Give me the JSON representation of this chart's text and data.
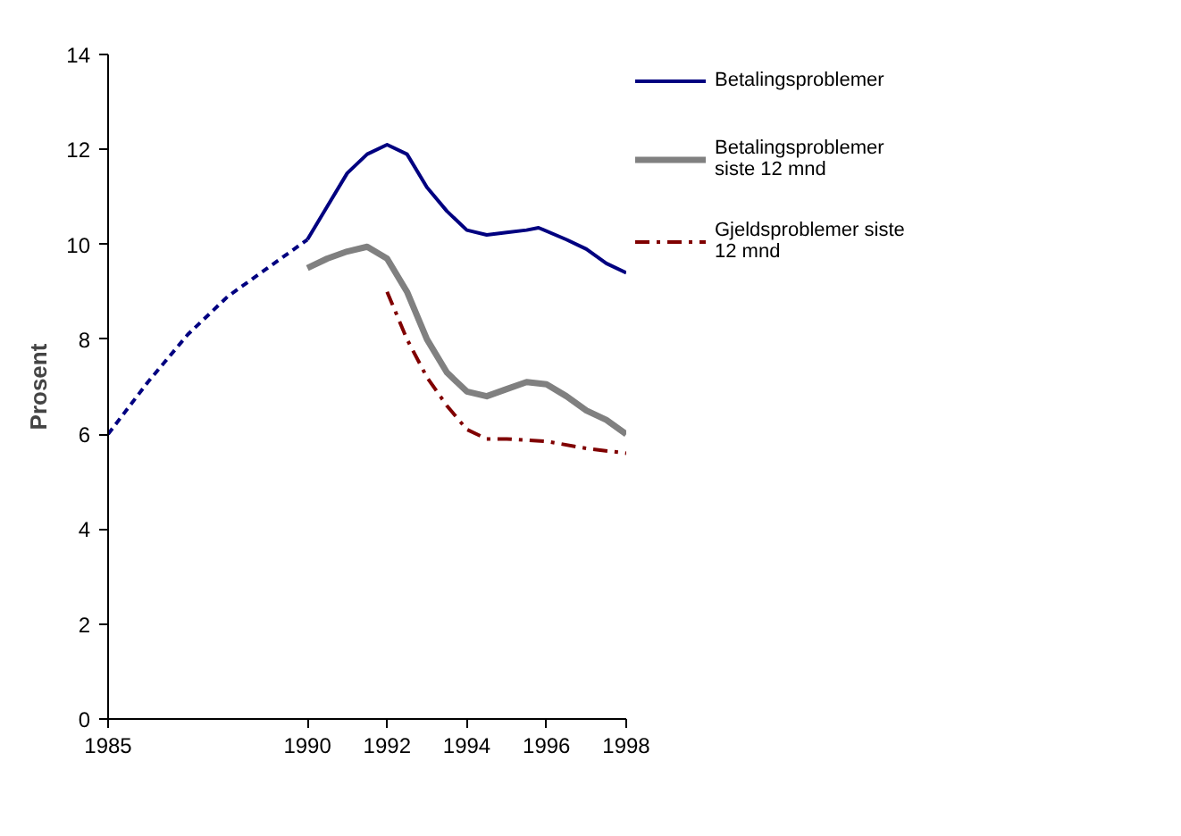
{
  "chart_data": {
    "type": "line",
    "ylabel": "Prosent",
    "xlim": [
      1985,
      1998
    ],
    "xticks": [
      1985,
      1990,
      1992,
      1994,
      1996,
      1998
    ],
    "ylim": [
      0,
      14
    ],
    "yticks": [
      0,
      2,
      4,
      6,
      8,
      10,
      12,
      14
    ],
    "grid": false,
    "legend": "right",
    "series": [
      {
        "color": "#000080",
        "line_style": "dotted",
        "x": [
          1985,
          1986,
          1987,
          1988,
          1989,
          1990
        ],
        "values": [
          6.0,
          7.1,
          8.1,
          8.9,
          9.5,
          10.1
        ]
      },
      {
        "name": "Betalingsproblemer",
        "color": "#000080",
        "line_style": "solid",
        "x": [
          1990,
          1990.5,
          1991,
          1991.5,
          1992,
          1992.5,
          1993,
          1993.5,
          1994,
          1994.5,
          1995,
          1995.5,
          1995.8,
          1996.5,
          1997,
          1997.5,
          1998
        ],
        "values": [
          10.1,
          10.8,
          11.5,
          11.9,
          12.1,
          11.9,
          11.2,
          10.7,
          10.3,
          10.2,
          10.25,
          10.3,
          10.35,
          10.1,
          9.9,
          9.6,
          9.4
        ]
      },
      {
        "name": "Betalingsproblemer siste 12 mnd",
        "color": "#808080",
        "line_style": "solid",
        "x": [
          1990,
          1990.5,
          1991,
          1991.5,
          1992,
          1992.5,
          1993,
          1993.5,
          1994,
          1994.5,
          1995,
          1995.5,
          1996,
          1996.5,
          1997,
          1997.5,
          1998
        ],
        "values": [
          9.5,
          9.7,
          9.85,
          9.95,
          9.7,
          9.0,
          8.0,
          7.3,
          6.9,
          6.8,
          6.95,
          7.1,
          7.05,
          6.8,
          6.5,
          6.3,
          6.0
        ]
      },
      {
        "name": "Gjeldsproblemer siste 12 mnd",
        "color": "#800000",
        "line_style": "dashed",
        "x": [
          1992,
          1992.5,
          1993,
          1993.5,
          1994,
          1994.5,
          1995,
          1996,
          1997,
          1998
        ],
        "values": [
          9.0,
          8.0,
          7.2,
          6.6,
          6.1,
          5.9,
          5.9,
          5.85,
          5.7,
          5.6
        ]
      }
    ]
  }
}
